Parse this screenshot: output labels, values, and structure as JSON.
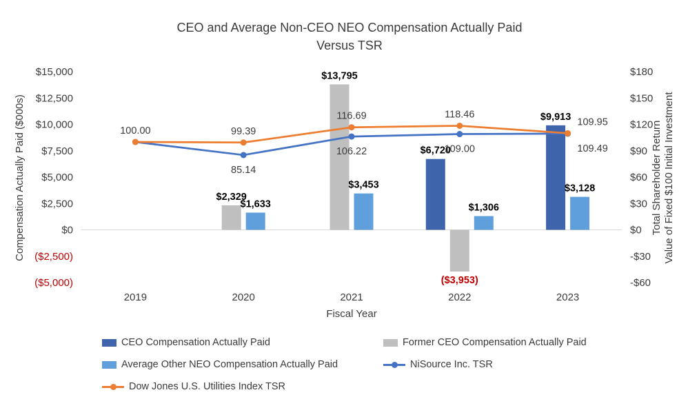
{
  "title": {
    "line1": "CEO and Average Non-CEO NEO Compensation Actually Paid",
    "line2": "Versus TSR"
  },
  "chart_data": {
    "type": "combo-bar-line",
    "categories": [
      "2019",
      "2020",
      "2021",
      "2022",
      "2023"
    ],
    "axes": {
      "left": {
        "label": "Compensation Actually Paid ($000s)",
        "min": -5000,
        "max": 15000,
        "step": 2500,
        "ticks": [
          "$15,000",
          "$12,500",
          "$10,000",
          "$7,500",
          "$5,000",
          "$2,500",
          "$0",
          "($2,500)",
          "($5,000)"
        ]
      },
      "right": {
        "label_line1": "Total Shareholder Return",
        "label_line2": "Value of Fixed $100 Initial Investment",
        "min": -60,
        "max": 180,
        "step": 30,
        "ticks": [
          "$180",
          "$150",
          "$120",
          "$90",
          "$60",
          "$30",
          "$0",
          "-$30",
          "-$60"
        ]
      },
      "x": {
        "label": "Fiscal Year"
      }
    },
    "bar_series": [
      {
        "name": "CEO Compensation Actually Paid",
        "color": "#3E64AC",
        "values": [
          null,
          null,
          null,
          6720,
          9913
        ],
        "labels": [
          null,
          null,
          null,
          "$6,720",
          "$9,913"
        ]
      },
      {
        "name": "Former CEO Compensation Actually Paid",
        "color": "#BFBFBF",
        "values": [
          null,
          2329,
          13795,
          -3953,
          null
        ],
        "labels": [
          null,
          "$2,329",
          "$13,795",
          "($3,953)",
          null
        ]
      },
      {
        "name": "Average Other NEO Compensation Actually Paid",
        "color": "#5FA0DC",
        "values": [
          null,
          1633,
          3453,
          1306,
          3128
        ],
        "labels": [
          null,
          "$1,633",
          "$3,453",
          "$1,306",
          "$3,128"
        ]
      }
    ],
    "line_series": [
      {
        "name": "NiSource Inc. TSR",
        "color": "#4472C4",
        "values": [
          100.0,
          85.14,
          106.22,
          109.0,
          109.49
        ],
        "labels": [
          null,
          "85.14",
          "106.22",
          "109.00",
          "109.49"
        ],
        "label_position": "below",
        "label_dx": [
          0,
          0,
          0,
          0,
          36
        ]
      },
      {
        "name": "Dow Jones U.S. Utilities Index TSR",
        "color": "#ED7D31",
        "values": [
          100.0,
          99.39,
          116.69,
          118.46,
          109.95
        ],
        "labels": [
          "100.00",
          "99.39",
          "116.69",
          "118.46",
          "109.95"
        ],
        "label_position": "above",
        "label_dx": [
          0,
          0,
          0,
          0,
          36
        ]
      }
    ],
    "colors": {
      "negative_label": "#C00000",
      "grid": "#D9D9D9",
      "text": "#3A3A3A",
      "bar_label": "#000000"
    },
    "legend_position": "bottom",
    "grid": "zero-line-only"
  },
  "legend": {
    "items": [
      {
        "label": "CEO Compensation Actually Paid",
        "swatch": "bar",
        "color": "#3E64AC"
      },
      {
        "label": "Former CEO Compensation Actually Paid",
        "swatch": "bar",
        "color": "#BFBFBF"
      },
      {
        "label": "Average Other NEO Compensation Actually Paid",
        "swatch": "bar",
        "color": "#5FA0DC"
      },
      {
        "label": "NiSource Inc. TSR",
        "swatch": "line",
        "color": "#4472C4"
      },
      {
        "label": "Dow Jones U.S. Utilities Index TSR",
        "swatch": "line",
        "color": "#ED7D31"
      }
    ]
  }
}
